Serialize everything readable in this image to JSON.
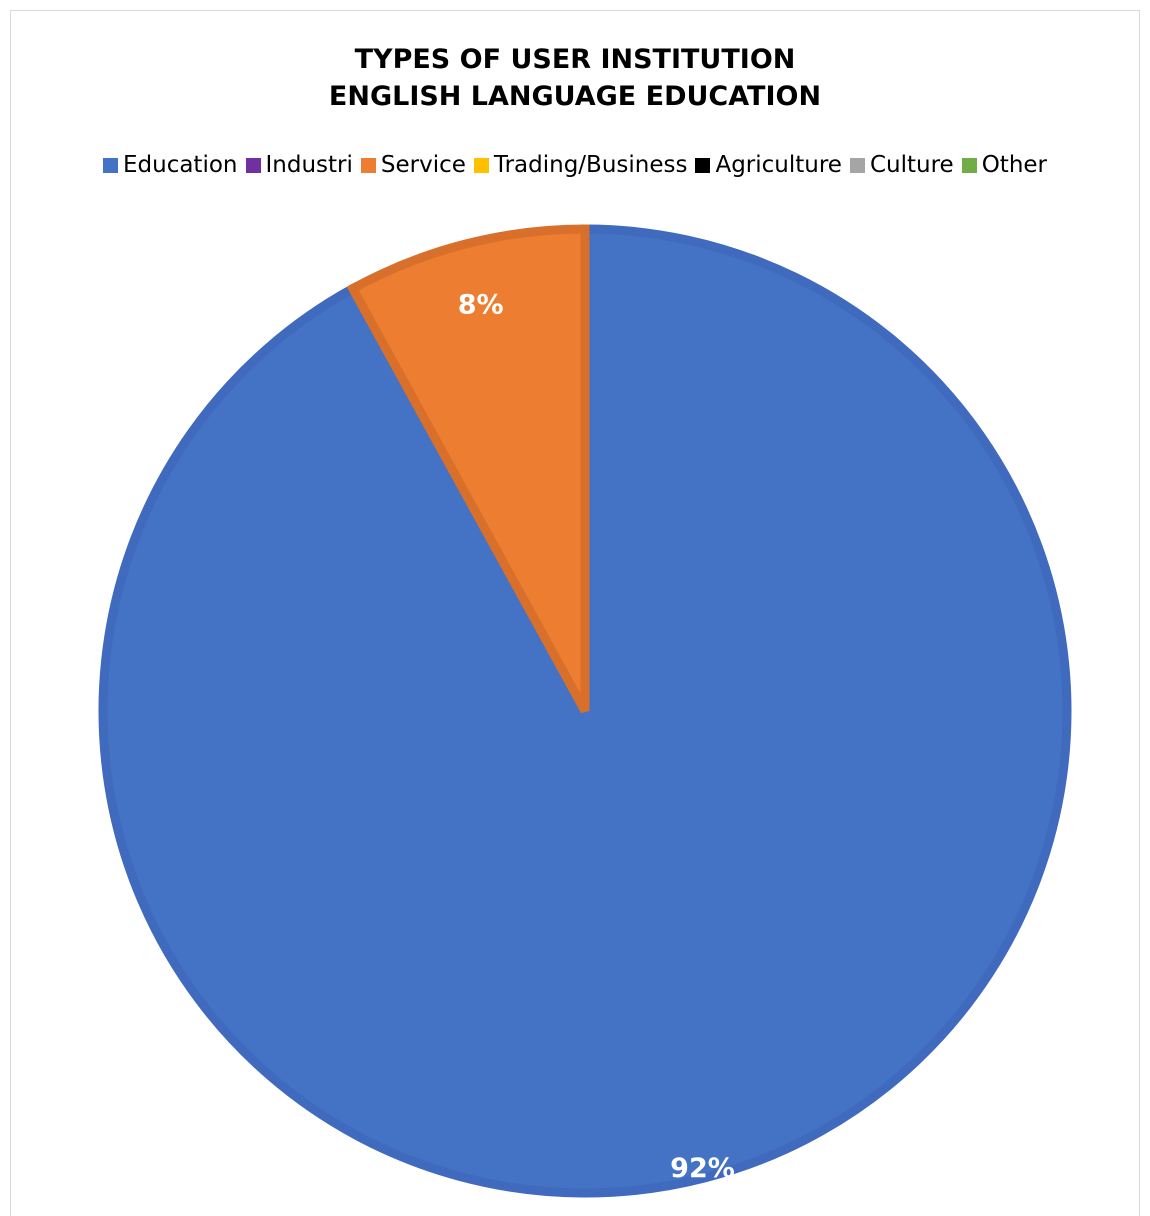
{
  "chart_data": {
    "type": "pie",
    "title": [
      "TYPES OF USER INSTITUTION",
      "ENGLISH LANGUAGE EDUCATION"
    ],
    "legend_position": "top",
    "categories": [
      "Education",
      "Industri",
      "Service",
      "Trading/Business",
      "Agriculture",
      "Culture",
      "Other"
    ],
    "values": [
      92,
      0,
      8,
      0,
      0,
      0,
      0
    ],
    "data_labels": [
      "92%",
      "",
      "8%",
      "",
      "",
      "",
      ""
    ],
    "colors": [
      "#4472C4",
      "#7030A0",
      "#ED7D31",
      "#FFC000",
      "#000000",
      "#A5A5A5",
      "#70AD47"
    ],
    "border_colors": [
      "#3F6ABE",
      "#6A2D99",
      "#D8702B",
      "#E6AE00",
      "#000000",
      "#959595",
      "#65A03F"
    ]
  }
}
